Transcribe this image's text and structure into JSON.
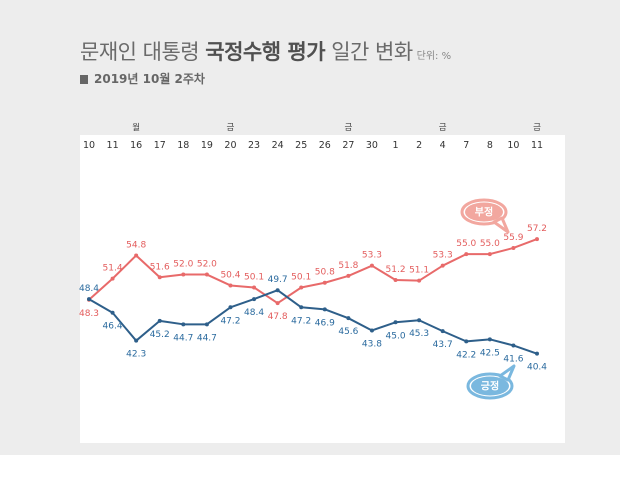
{
  "header": {
    "title_part1": "문재인 대통령 ",
    "title_bold": "국정수행 평가",
    "title_part2": " 일간 변화",
    "unit": "단위: %",
    "subtitle": "2019년 10월 2주차"
  },
  "chart_data": {
    "type": "line",
    "title": "문재인 대통령 국정수행 평가 일간 변화",
    "unit": "단위: %",
    "categories": [
      "10",
      "11",
      "16",
      "17",
      "18",
      "19",
      "20",
      "23",
      "24",
      "25",
      "26",
      "27",
      "30",
      "1",
      "2",
      "4",
      "7",
      "8",
      "10",
      "11"
    ],
    "day_marks": [
      {
        "index": 2,
        "label": "월"
      },
      {
        "index": 6,
        "label": "금"
      },
      {
        "index": 11,
        "label": "금"
      },
      {
        "index": 15,
        "label": "금"
      },
      {
        "index": 19,
        "label": "금"
      }
    ],
    "ylim": [
      38,
      60
    ],
    "series": [
      {
        "name": "부정",
        "color": "#e86a6a",
        "values": [
          48.3,
          51.4,
          54.8,
          51.6,
          52.0,
          52.0,
          50.4,
          50.1,
          47.8,
          50.1,
          50.8,
          51.8,
          53.3,
          51.2,
          51.1,
          53.3,
          55.0,
          55.0,
          55.9,
          57.2
        ]
      },
      {
        "name": "긍정",
        "color": "#2e5f8a",
        "values": [
          48.4,
          46.4,
          42.3,
          45.2,
          44.7,
          44.7,
          47.2,
          48.4,
          49.7,
          47.2,
          46.9,
          45.6,
          43.8,
          45.0,
          45.3,
          43.7,
          42.2,
          42.5,
          41.6,
          40.4
        ]
      }
    ],
    "legend_neg": "부정",
    "legend_pos": "긍정",
    "bubble_neg_color": "#f2a79f",
    "bubble_pos_color": "#7ab8df"
  }
}
